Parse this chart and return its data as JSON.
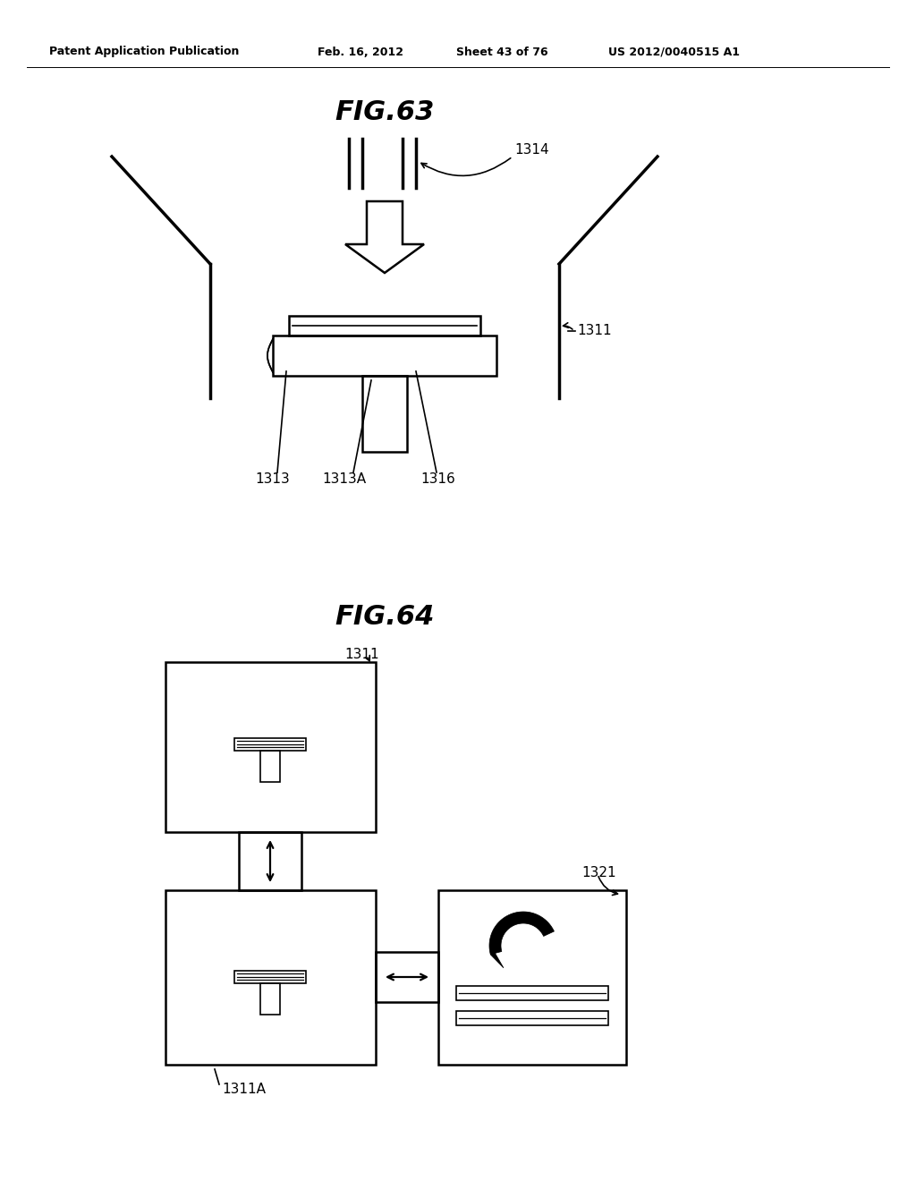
{
  "background_color": "#ffffff",
  "header_text": "Patent Application Publication",
  "header_date": "Feb. 16, 2012",
  "header_sheet": "Sheet 43 of 76",
  "header_patent": "US 2012/0040515 A1",
  "fig63_title": "FIG.63",
  "fig64_title": "FIG.64",
  "label_1314": "1314",
  "label_1311_fig63": "1311",
  "label_1313": "1313",
  "label_1313A": "1313A",
  "label_1316": "1316",
  "label_1311_fig64": "1311",
  "label_1311A": "1311A",
  "label_1321": "1321"
}
